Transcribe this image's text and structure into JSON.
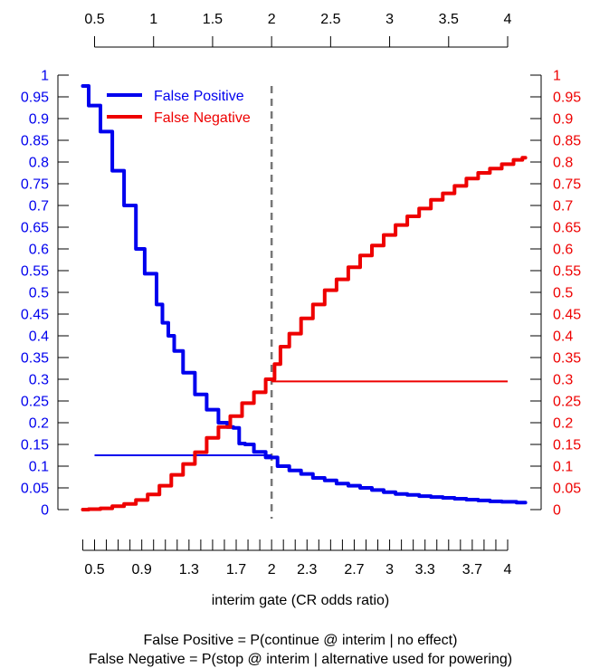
{
  "chart_data": {
    "type": "line",
    "xlabel": "interim gate (CR odds ratio)",
    "xlim": [
      0.4,
      4.15
    ],
    "ylim": [
      0,
      1
    ],
    "grid": false,
    "legend_position": "top-left",
    "top_axis": {
      "ticks": [
        0.5,
        1,
        1.5,
        2,
        2.5,
        3,
        3.5,
        4
      ],
      "labels": [
        "0.5",
        "1",
        "1.5",
        "2",
        "2.5",
        "3",
        "3.5",
        "4"
      ]
    },
    "bottom_axis": {
      "ticks": [
        0.5,
        0.9,
        1.3,
        1.7,
        2,
        2.3,
        2.7,
        3,
        3.3,
        3.7,
        4
      ],
      "labels": [
        "0.5",
        "0.9",
        "1.3",
        "1.7",
        "2",
        "2.3",
        "2.7",
        "3",
        "3.3",
        "3.7",
        "4"
      ],
      "minor_ticks": [
        0.4,
        0.5,
        0.6,
        0.7,
        0.8,
        0.9,
        1.0,
        1.1,
        1.2,
        1.3,
        1.4,
        1.5,
        1.6,
        1.7,
        1.8,
        1.9,
        2.0,
        2.1,
        2.2,
        2.3,
        2.4,
        2.5,
        2.6,
        2.7,
        2.8,
        2.9,
        3.0,
        3.1,
        3.2,
        3.3,
        3.4,
        3.5,
        3.6,
        3.7,
        3.8,
        3.9,
        4.0
      ]
    },
    "y_ticks": [
      0,
      0.05,
      0.1,
      0.15,
      0.2,
      0.25,
      0.3,
      0.35,
      0.4,
      0.45,
      0.5,
      0.55,
      0.6,
      0.65,
      0.7,
      0.75,
      0.8,
      0.85,
      0.9,
      0.95,
      1
    ],
    "y_tick_labels": [
      "0",
      "0.05",
      "0.1",
      "0.15",
      "0.2",
      "0.25",
      "0.3",
      "0.35",
      "0.4",
      "0.45",
      "0.5",
      "0.55",
      "0.6",
      "0.65",
      "0.7",
      "0.75",
      "0.8",
      "0.85",
      "0.9",
      "0.95",
      "1"
    ],
    "vline": {
      "x": 2,
      "color": "#777777",
      "style": "dashed"
    },
    "series": [
      {
        "name": "False Positive",
        "color": "#0000ee",
        "x": [
          0.4,
          0.5,
          0.6,
          0.7,
          0.8,
          0.9,
          0.95,
          1.0,
          1.05,
          1.1,
          1.15,
          1.2,
          1.3,
          1.4,
          1.5,
          1.6,
          1.65,
          1.7,
          1.75,
          1.8,
          1.9,
          2.0,
          2.1,
          2.2,
          2.3,
          2.4,
          2.5,
          2.6,
          2.7,
          2.8,
          2.9,
          3.0,
          3.1,
          3.2,
          3.3,
          3.4,
          3.5,
          3.6,
          3.7,
          3.8,
          3.9,
          4.0,
          4.15
        ],
        "values": [
          0.975,
          0.93,
          0.87,
          0.78,
          0.7,
          0.6,
          0.543,
          0.543,
          0.472,
          0.43,
          0.4,
          0.365,
          0.315,
          0.265,
          0.23,
          0.2,
          0.19,
          0.188,
          0.152,
          0.15,
          0.133,
          0.12,
          0.1,
          0.09,
          0.082,
          0.073,
          0.067,
          0.06,
          0.055,
          0.05,
          0.045,
          0.04,
          0.036,
          0.034,
          0.031,
          0.029,
          0.027,
          0.025,
          0.023,
          0.021,
          0.019,
          0.018,
          0.016
        ]
      },
      {
        "name": "False Negative",
        "color": "#ee0000",
        "x": [
          0.4,
          0.5,
          0.6,
          0.7,
          0.8,
          0.9,
          1.0,
          1.1,
          1.2,
          1.3,
          1.4,
          1.5,
          1.6,
          1.7,
          1.8,
          1.9,
          2.0,
          2.05,
          2.1,
          2.2,
          2.3,
          2.4,
          2.5,
          2.6,
          2.7,
          2.8,
          2.9,
          3.0,
          3.1,
          3.2,
          3.3,
          3.4,
          3.5,
          3.6,
          3.7,
          3.8,
          3.9,
          4.0,
          4.1,
          4.15
        ],
        "values": [
          0.0,
          0.001,
          0.003,
          0.008,
          0.013,
          0.022,
          0.035,
          0.055,
          0.08,
          0.105,
          0.132,
          0.165,
          0.19,
          0.215,
          0.245,
          0.27,
          0.3,
          0.335,
          0.375,
          0.405,
          0.44,
          0.472,
          0.505,
          0.53,
          0.558,
          0.585,
          0.608,
          0.632,
          0.655,
          0.675,
          0.693,
          0.713,
          0.728,
          0.745,
          0.762,
          0.775,
          0.785,
          0.795,
          0.805,
          0.81
        ]
      }
    ],
    "reference_lines": [
      {
        "color": "#0000ee",
        "x0": 0.5,
        "x1": 2.0,
        "y": 0.125
      },
      {
        "color": "#ee0000",
        "x0": 2.0,
        "x1": 4.0,
        "y": 0.295
      }
    ],
    "caption": [
      "False Positive = P(continue @ interim | no effect)",
      "False Negative = P(stop @ interim | alternative used for powering)"
    ]
  }
}
